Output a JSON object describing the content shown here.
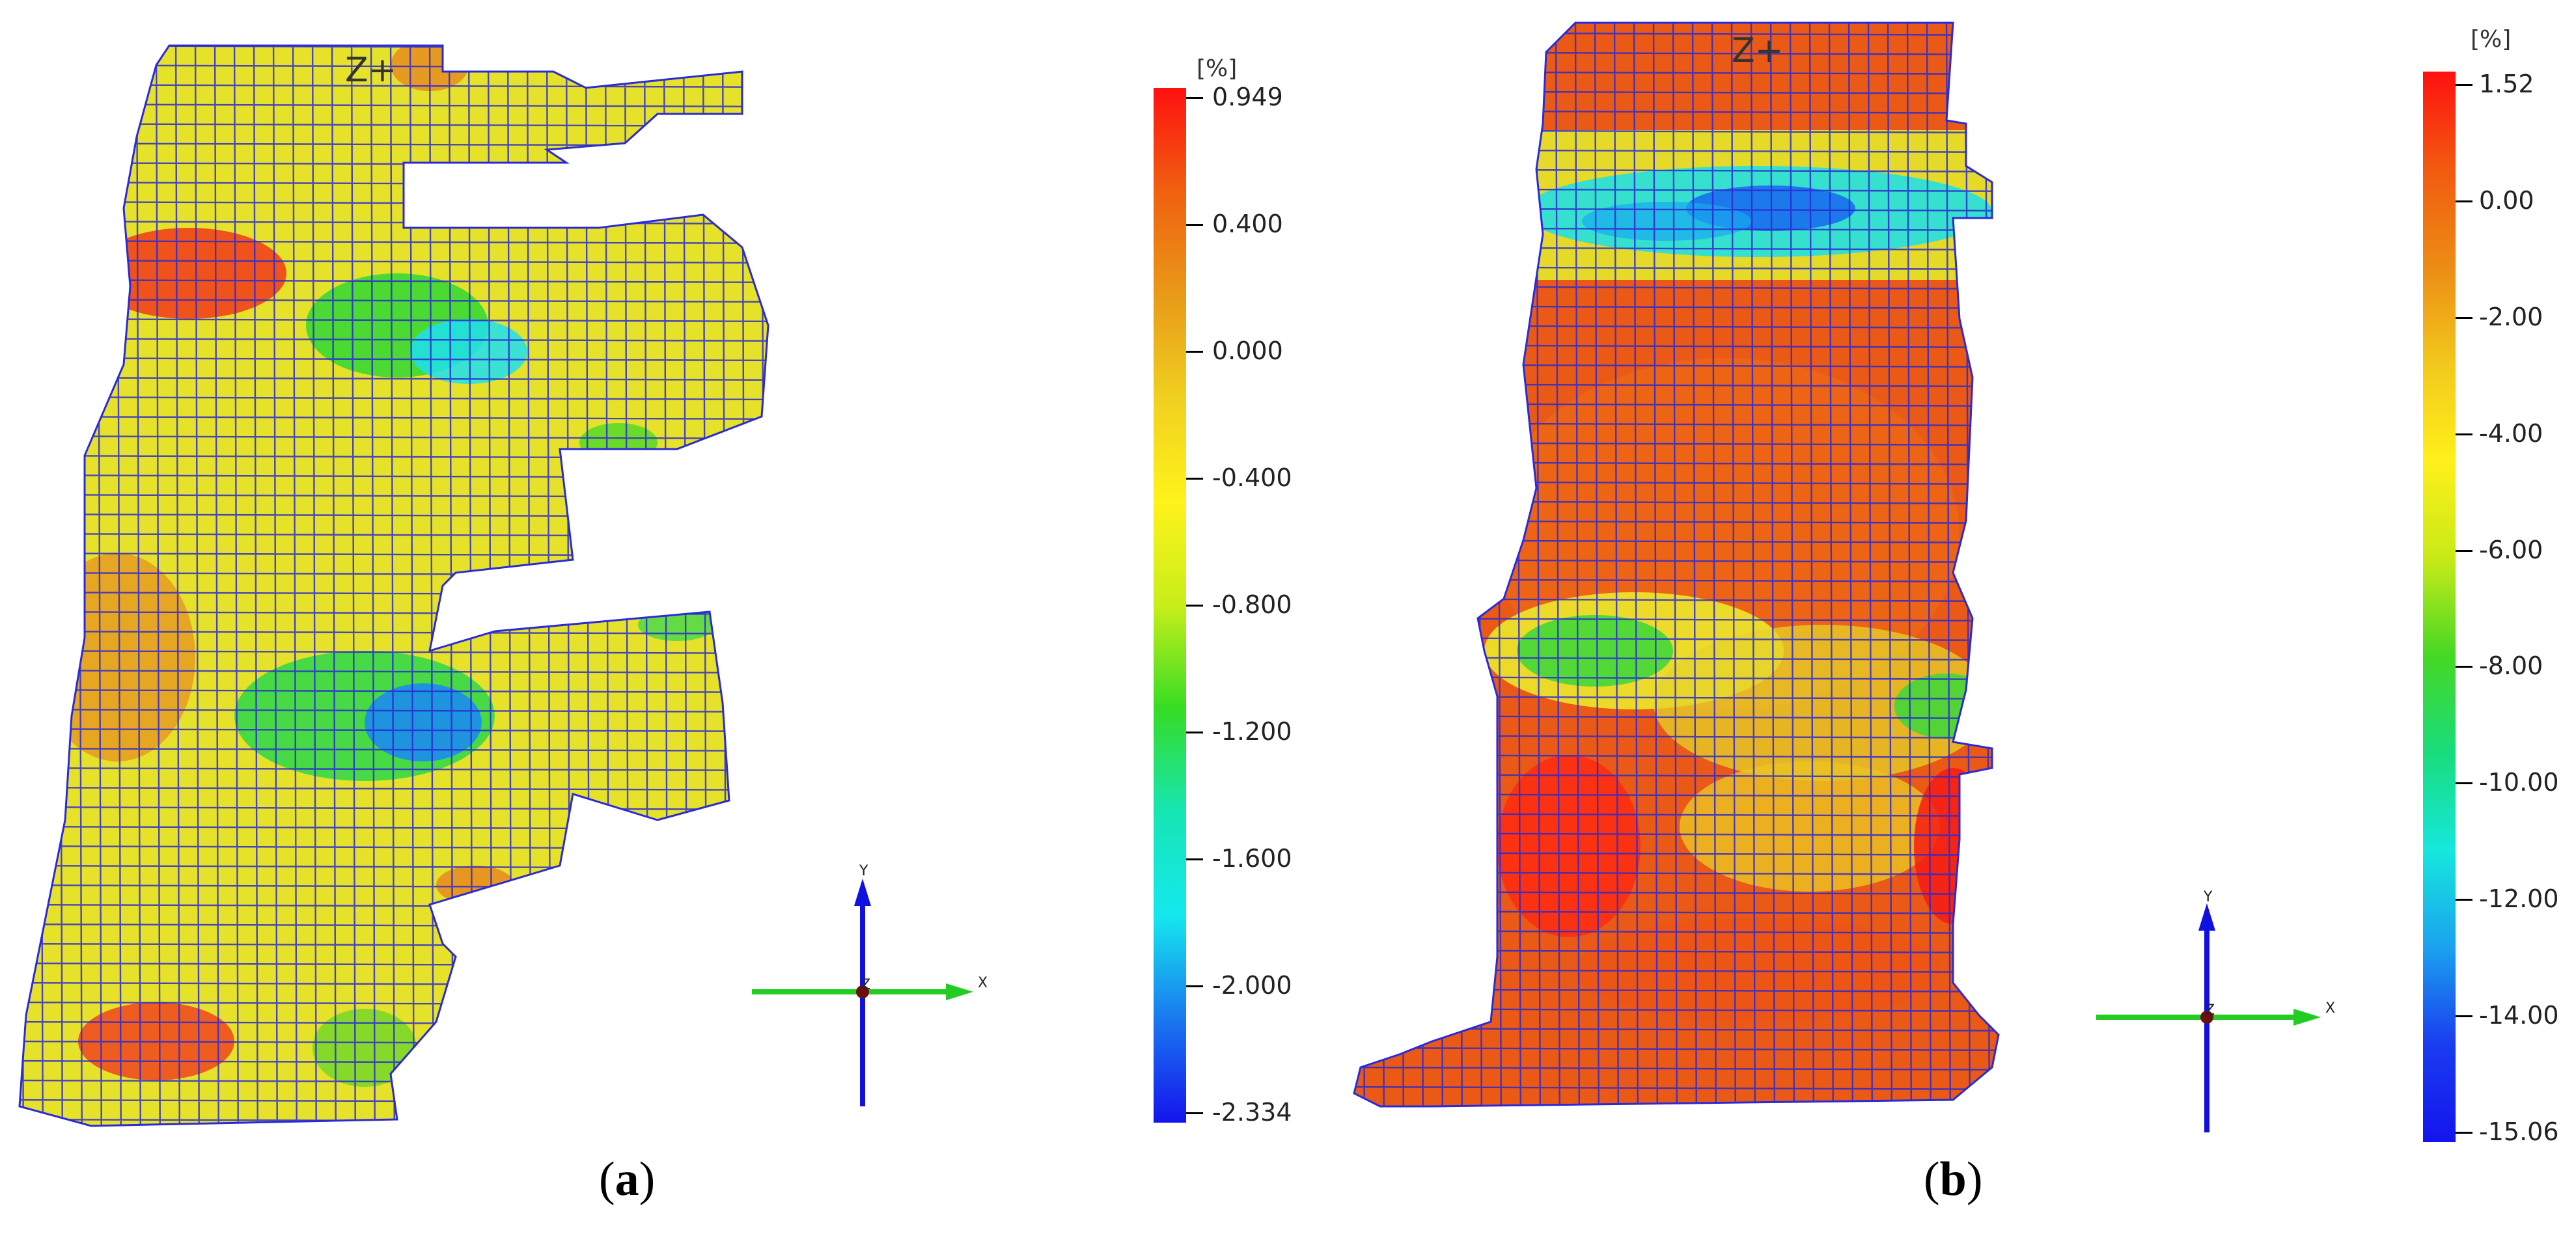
{
  "panels": [
    {
      "id": "a",
      "caption": "a",
      "view_label": "Z+",
      "colorbar": {
        "unit": "[%]",
        "colors": [
          "#ff1010",
          "#f06010",
          "#e89a18",
          "#f0d020",
          "#fff31a",
          "#c8ee1a",
          "#36dc24",
          "#16e6b4",
          "#14e8ee",
          "#1a78ef",
          "#1414ee"
        ],
        "ticks": [
          "0.949",
          "0.400",
          "0.000",
          "-0.400",
          "-0.800",
          "-1.200",
          "-1.600",
          "-2.000",
          "-2.334"
        ]
      },
      "triad": {
        "y": "Y",
        "x": "X",
        "z": "Z"
      }
    },
    {
      "id": "b",
      "caption": "b",
      "view_label": "Z+",
      "colorbar": {
        "unit": "[%]",
        "colors": [
          "#ff1010",
          "#f25a10",
          "#ec8c14",
          "#f2c81c",
          "#fff01a",
          "#c8ea18",
          "#46d824",
          "#18dc7c",
          "#16e8dc",
          "#1aa2ef",
          "#1a3cef",
          "#1414ee"
        ],
        "ticks": [
          "1.52",
          "0.00",
          "-2.00",
          "-4.00",
          "-6.00",
          "-8.00",
          "-10.00",
          "-12.00",
          "-14.00",
          "-15.06"
        ]
      },
      "triad": {
        "y": "Y",
        "x": "X",
        "z": "Z"
      }
    }
  ]
}
